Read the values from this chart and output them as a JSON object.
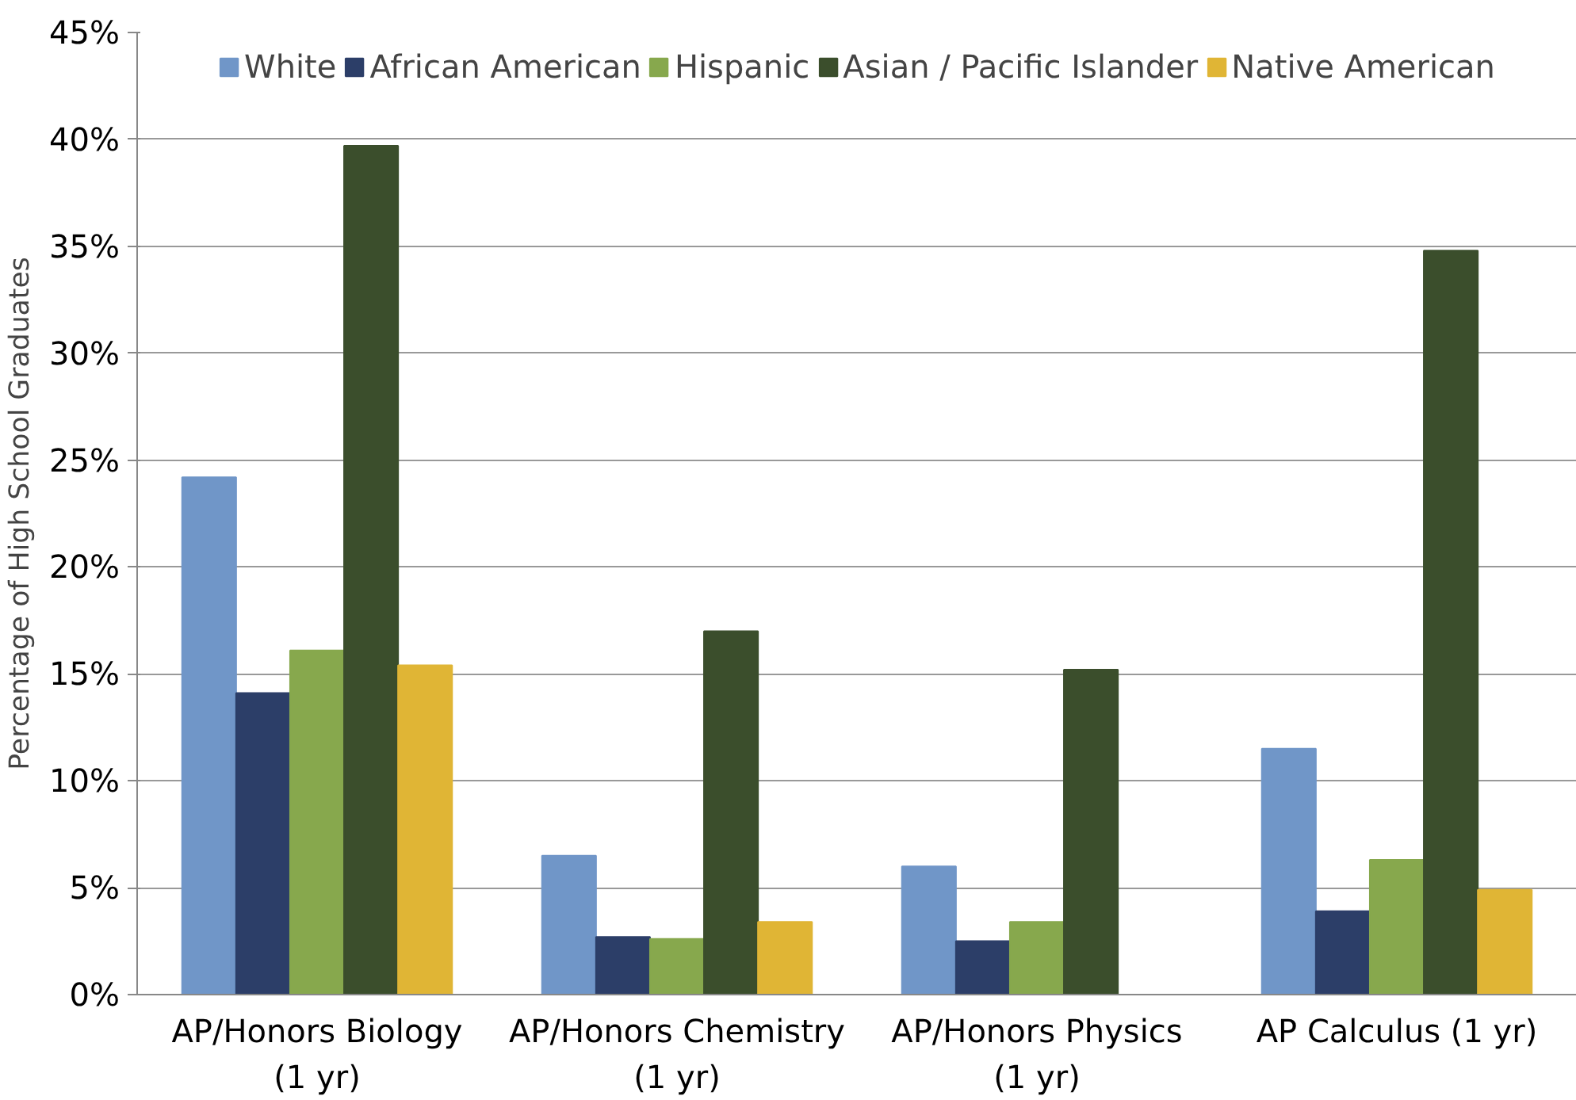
{
  "chart_data": {
    "type": "bar",
    "ylabel": "Percentage of High School Graduates",
    "categories": [
      "AP/Honors Biology\n(1 yr)",
      "AP/Honors Chemistry\n(1 yr)",
      "AP/Honors Physics\n(1 yr)",
      "AP Calculus (1 yr)"
    ],
    "series": [
      {
        "name": "White",
        "color": "#7096c8",
        "values": [
          24.2,
          6.5,
          6.0,
          11.5
        ]
      },
      {
        "name": "African American",
        "color": "#2c3e68",
        "values": [
          14.1,
          2.7,
          2.5,
          3.9
        ]
      },
      {
        "name": "Hispanic",
        "color": "#87a84d",
        "values": [
          16.1,
          2.6,
          3.4,
          6.3
        ]
      },
      {
        "name": "Asian / Pacific Islander",
        "color": "#3b4e2c",
        "values": [
          39.7,
          17.0,
          15.2,
          34.8
        ]
      },
      {
        "name": "Native American",
        "color": "#e0b535",
        "values": [
          15.4,
          3.4,
          null,
          4.9
        ]
      }
    ],
    "ylim": [
      0,
      45
    ],
    "yticks": [
      {
        "value": 0,
        "label": "0%"
      },
      {
        "value": 5,
        "label": "5%"
      },
      {
        "value": 10,
        "label": "10%"
      },
      {
        "value": 15,
        "label": "15%"
      },
      {
        "value": 20,
        "label": "20%"
      },
      {
        "value": 25,
        "label": "25%"
      },
      {
        "value": 30,
        "label": "30%"
      },
      {
        "value": 35,
        "label": "35%"
      },
      {
        "value": 40,
        "label": "40%"
      },
      {
        "value": 45,
        "label": "45%"
      }
    ],
    "grid": "y",
    "legend": "top"
  }
}
